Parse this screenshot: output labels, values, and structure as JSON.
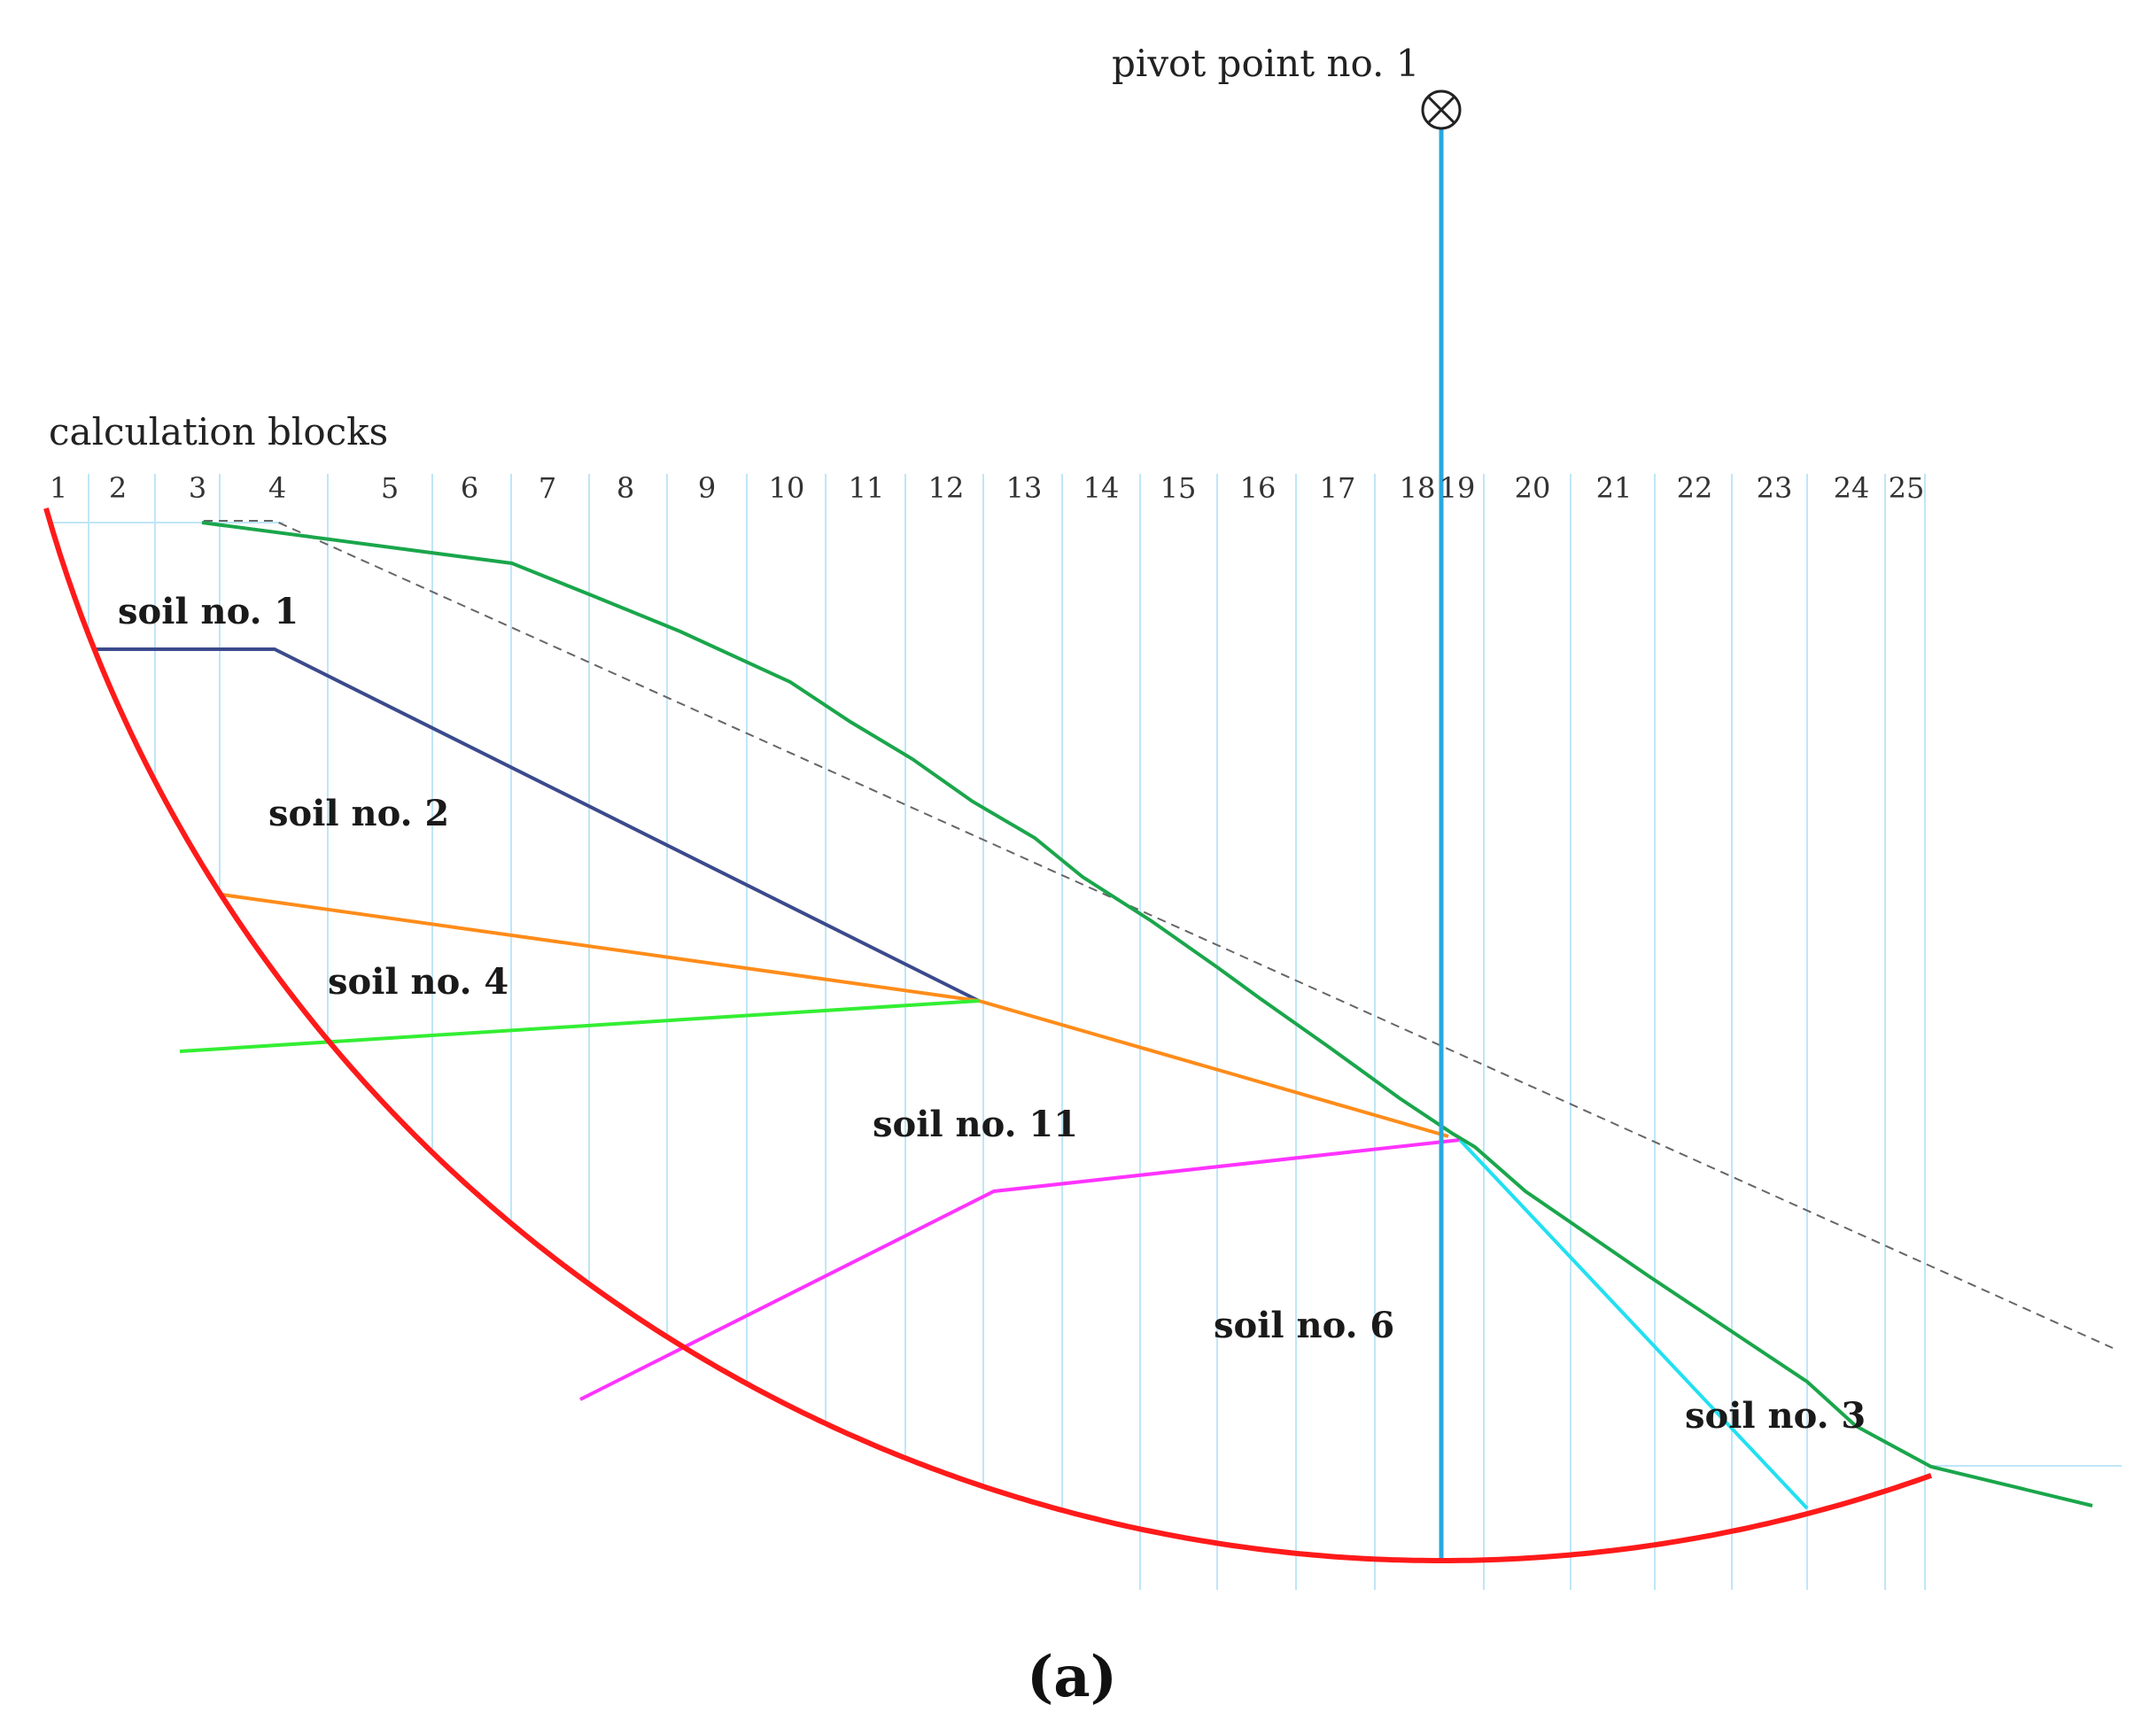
{
  "figure": {
    "pivot_label": "pivot point no. 1",
    "blocks_label": "calculation blocks",
    "panel_label": "(a)"
  },
  "blocks": [
    "1",
    "2",
    "3",
    "4",
    "5",
    "6",
    "7",
    "8",
    "9",
    "10",
    "11",
    "12",
    "13",
    "14",
    "15",
    "16",
    "17",
    "18",
    "19",
    "20",
    "21",
    "22",
    "23",
    "24",
    "25"
  ],
  "soils": [
    {
      "label": "soil no. 1"
    },
    {
      "label": "soil no. 2"
    },
    {
      "label": "soil no. 4"
    },
    {
      "label": "soil no. 11"
    },
    {
      "label": "soil no. 6"
    },
    {
      "label": "soil no. 3"
    }
  ],
  "colors": {
    "slip_surface": "#ff1a1a",
    "slope_profile": "#1aa64b",
    "boundary_soil1_soil2": "#3b4a8c",
    "boundary_soil2_soil4": "#ff8c1a",
    "boundary_soil4_soil11": "#33ee33",
    "boundary_soil11_soil6": "#ff33ff",
    "boundary_soil6_soil3": "#22e0f0",
    "pivot_radius": "#29a8e0",
    "block_dividers": "#bfe6f7",
    "reference_line": "#666666"
  }
}
